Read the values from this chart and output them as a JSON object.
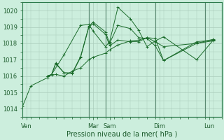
{
  "bg_color": "#cceedd",
  "grid_color": "#aaccbb",
  "line_color": "#1a6b2a",
  "xlabel": "Pression niveau de la mer( hPa )",
  "ylim": [
    1013.5,
    1020.5
  ],
  "yticks": [
    1014,
    1015,
    1016,
    1017,
    1018,
    1019,
    1020
  ],
  "xlim": [
    0,
    24
  ],
  "day_tick_pos": [
    0.5,
    8.5,
    10.5,
    16.5,
    22.5
  ],
  "day_labels": [
    "Ven",
    "Mar",
    "Sam",
    "Dim",
    "Lun"
  ],
  "vline_positions": [
    8,
    10,
    16,
    22
  ],
  "series": [
    {
      "x": [
        0,
        1,
        3,
        3.5,
        5,
        7,
        8,
        8.5,
        10,
        10.5,
        11.5,
        13,
        14,
        15,
        16,
        17,
        21,
        23
      ],
      "y": [
        1014.15,
        1015.4,
        1015.9,
        1016.1,
        1017.3,
        1019.1,
        1019.15,
        1018.75,
        1017.8,
        1018.1,
        1020.2,
        1019.5,
        1018.8,
        1017.8,
        1018.15,
        1018.4,
        1017.0,
        1018.2
      ]
    },
    {
      "x": [
        3,
        3.5,
        4,
        5,
        6,
        7,
        8,
        8.5,
        10,
        10.5,
        11.5,
        13,
        14,
        15,
        16,
        17,
        21,
        23
      ],
      "y": [
        1016.0,
        1016.1,
        1016.8,
        1016.2,
        1016.15,
        1017.15,
        1019.0,
        1019.2,
        1018.55,
        1017.85,
        1018.2,
        1018.1,
        1018.1,
        1018.35,
        1018.3,
        1016.95,
        1018.0,
        1018.25
      ]
    },
    {
      "x": [
        3,
        3.5,
        4,
        5,
        6,
        7,
        8,
        8.5,
        10,
        10.5,
        11.5,
        13,
        14,
        15,
        16,
        17,
        21,
        23
      ],
      "y": [
        1016.0,
        1016.1,
        1016.75,
        1016.2,
        1016.2,
        1017.2,
        1019.05,
        1019.3,
        1018.7,
        1018.0,
        1019.1,
        1018.9,
        1018.35,
        1018.3,
        1017.85,
        1016.95,
        1018.1,
        1018.2
      ]
    },
    {
      "x": [
        3,
        3.5,
        4,
        5,
        6,
        7,
        8,
        8.5,
        10,
        10.5,
        11.5,
        13,
        14,
        15,
        16,
        17,
        21,
        23
      ],
      "y": [
        1016.0,
        1016.05,
        1016.1,
        1016.0,
        1016.3,
        1016.5,
        1017.0,
        1017.15,
        1017.4,
        1017.6,
        1017.9,
        1018.15,
        1018.2,
        1018.35,
        1018.1,
        1017.8,
        1018.0,
        1018.15
      ]
    }
  ]
}
